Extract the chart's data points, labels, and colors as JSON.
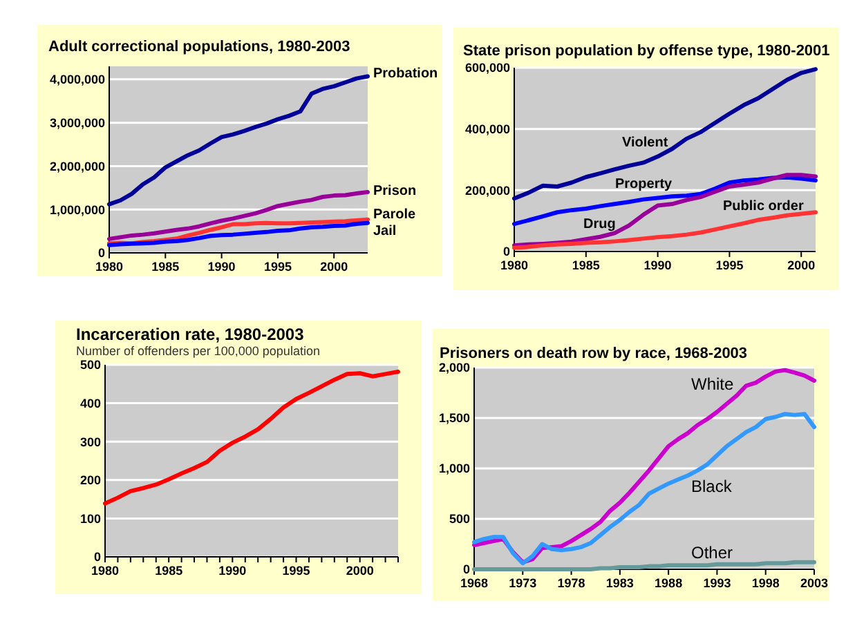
{
  "chart_data": [
    {
      "type": "line",
      "title": "Adult correctional populations, 1980-2003",
      "x": [
        1980,
        1981,
        1982,
        1983,
        1984,
        1985,
        1986,
        1987,
        1988,
        1989,
        1990,
        1991,
        1992,
        1993,
        1994,
        1995,
        1996,
        1997,
        1998,
        1999,
        2000,
        2001,
        2002,
        2003
      ],
      "xlim": [
        1980,
        2003
      ],
      "xticks": [
        1980,
        1985,
        1990,
        1995,
        2000
      ],
      "ylim": [
        0,
        4300000
      ],
      "yticks": [
        {
          "value": 0,
          "label": "0"
        },
        {
          "value": 1000000,
          "label": "1,000,000"
        },
        {
          "value": 2000000,
          "label": "2,000,000"
        },
        {
          "value": 3000000,
          "label": "3,000,000"
        },
        {
          "value": 4000000,
          "label": "4,000,000"
        }
      ],
      "grid": "y",
      "series": [
        {
          "name": "Probation",
          "color": "#000099",
          "values": [
            1120000,
            1210000,
            1360000,
            1580000,
            1740000,
            1970000,
            2110000,
            2250000,
            2360000,
            2520000,
            2670000,
            2730000,
            2810000,
            2900000,
            2980000,
            3080000,
            3160000,
            3260000,
            3670000,
            3780000,
            3840000,
            3930000,
            4020000,
            4070000
          ]
        },
        {
          "name": "Prison",
          "color": "#990099",
          "values": [
            320000,
            360000,
            400000,
            420000,
            450000,
            490000,
            530000,
            560000,
            610000,
            680000,
            740000,
            790000,
            850000,
            910000,
            990000,
            1080000,
            1130000,
            1180000,
            1220000,
            1290000,
            1320000,
            1330000,
            1370000,
            1400000
          ]
        },
        {
          "name": "Parole",
          "color": "#ff3333",
          "values": [
            220000,
            230000,
            220000,
            250000,
            270000,
            300000,
            330000,
            400000,
            460000,
            530000,
            590000,
            660000,
            660000,
            680000,
            690000,
            680000,
            680000,
            690000,
            700000,
            710000,
            720000,
            730000,
            750000,
            770000
          ]
        },
        {
          "name": "Jail",
          "color": "#0000ff",
          "values": [
            180000,
            200000,
            210000,
            220000,
            230000,
            260000,
            270000,
            300000,
            340000,
            390000,
            410000,
            420000,
            440000,
            460000,
            480000,
            510000,
            520000,
            560000,
            590000,
            600000,
            620000,
            630000,
            670000,
            690000
          ]
        }
      ]
    },
    {
      "type": "line",
      "title": "State prison population by offense type, 1980-2001",
      "x": [
        1980,
        1981,
        1982,
        1983,
        1984,
        1985,
        1986,
        1987,
        1988,
        1989,
        1990,
        1991,
        1992,
        1993,
        1994,
        1995,
        1996,
        1997,
        1998,
        1999,
        2000,
        2001
      ],
      "xlim": [
        1980,
        2001
      ],
      "xticks": [
        1980,
        1985,
        1990,
        1995,
        2000
      ],
      "ylim": [
        0,
        600000
      ],
      "yticks": [
        {
          "value": 0,
          "label": "0"
        },
        {
          "value": 200000,
          "label": "200,000"
        },
        {
          "value": 400000,
          "label": "400,000"
        },
        {
          "value": 600000,
          "label": "600,000"
        }
      ],
      "grid": "y",
      "series": [
        {
          "name": "Violent",
          "color": "#000099",
          "values": [
            173000,
            192000,
            215000,
            212000,
            225000,
            243000,
            255000,
            268000,
            280000,
            290000,
            310000,
            335000,
            368000,
            390000,
            420000,
            450000,
            478000,
            500000,
            530000,
            560000,
            583000,
            595000
          ]
        },
        {
          "name": "Property",
          "color": "#0000ff",
          "values": [
            90000,
            102000,
            115000,
            128000,
            135000,
            140000,
            148000,
            155000,
            162000,
            170000,
            175000,
            180000,
            182000,
            188000,
            205000,
            225000,
            232000,
            235000,
            240000,
            242000,
            238000,
            232000
          ]
        },
        {
          "name": "Drug",
          "color": "#990099",
          "values": [
            20000,
            23000,
            25000,
            28000,
            32000,
            40000,
            48000,
            60000,
            85000,
            120000,
            150000,
            155000,
            168000,
            178000,
            195000,
            212000,
            218000,
            225000,
            238000,
            250000,
            250000,
            245000
          ]
        },
        {
          "name": "Public order",
          "color": "#ff3333",
          "values": [
            12000,
            15000,
            20000,
            23000,
            25000,
            28000,
            30000,
            33000,
            37000,
            42000,
            47000,
            50000,
            55000,
            62000,
            72000,
            82000,
            92000,
            103000,
            110000,
            118000,
            123000,
            128000
          ]
        }
      ]
    },
    {
      "type": "line",
      "title": "Incarceration rate, 1980-2003",
      "subtitle": "Number of offenders per 100,000 population",
      "x": [
        1980,
        1981,
        1982,
        1983,
        1984,
        1985,
        1986,
        1987,
        1988,
        1989,
        1990,
        1991,
        1992,
        1993,
        1994,
        1995,
        1996,
        1997,
        1998,
        1999,
        2000,
        2001,
        2002,
        2003
      ],
      "xlim": [
        1980,
        2003
      ],
      "xticks": [
        1980,
        {
          "value": 1981,
          "label": null
        },
        {
          "value": 1982,
          "label": null
        },
        {
          "value": 1983,
          "label": null
        },
        {
          "value": 1984,
          "label": null
        },
        1985,
        {
          "value": 1986,
          "label": null
        },
        {
          "value": 1987,
          "label": null
        },
        {
          "value": 1988,
          "label": null
        },
        {
          "value": 1989,
          "label": null
        },
        1990,
        {
          "value": 1991,
          "label": null
        },
        {
          "value": 1992,
          "label": null
        },
        {
          "value": 1993,
          "label": null
        },
        {
          "value": 1994,
          "label": null
        },
        1995,
        {
          "value": 1996,
          "label": null
        },
        {
          "value": 1997,
          "label": null
        },
        {
          "value": 1998,
          "label": null
        },
        {
          "value": 1999,
          "label": null
        },
        2000,
        {
          "value": 2001,
          "label": null
        },
        {
          "value": 2002,
          "label": null
        },
        {
          "value": 2003,
          "label": null
        }
      ],
      "ylim": [
        0,
        500
      ],
      "yticks": [
        0,
        100,
        200,
        300,
        400,
        500
      ],
      "grid": "y",
      "series": [
        {
          "color": "#ff0000",
          "values": [
            139,
            154,
            171,
            179,
            188,
            202,
            217,
            231,
            247,
            276,
            297,
            313,
            332,
            359,
            389,
            411,
            427,
            444,
            461,
            476,
            478,
            470,
            476,
            482
          ]
        }
      ]
    },
    {
      "type": "line",
      "title": "Prisoners on death row by race, 1968-2003",
      "x": [
        1968,
        1969,
        1970,
        1971,
        1972,
        1973,
        1974,
        1975,
        1976,
        1977,
        1978,
        1979,
        1980,
        1981,
        1982,
        1983,
        1984,
        1985,
        1986,
        1987,
        1988,
        1989,
        1990,
        1991,
        1992,
        1993,
        1994,
        1995,
        1996,
        1997,
        1998,
        1999,
        2000,
        2001,
        2002,
        2003
      ],
      "xlim": [
        1968,
        2003
      ],
      "xticks": [
        1968,
        1973,
        1978,
        1983,
        1988,
        1993,
        1998,
        2003
      ],
      "ylim": [
        0,
        2000
      ],
      "yticks": [
        0,
        500,
        {
          "value": 1000,
          "label": "1,000"
        },
        {
          "value": 1500,
          "label": "1,500"
        },
        {
          "value": 2000,
          "label": "2,000"
        }
      ],
      "grid": "y",
      "series": [
        {
          "name": "White",
          "color": "#cc00cc",
          "values": [
            240,
            260,
            280,
            300,
            170,
            70,
            100,
            210,
            220,
            230,
            280,
            340,
            400,
            470,
            580,
            660,
            760,
            870,
            980,
            1100,
            1220,
            1290,
            1350,
            1430,
            1490,
            1560,
            1640,
            1720,
            1820,
            1850,
            1910,
            1960,
            1975,
            1950,
            1920,
            1870
          ]
        },
        {
          "name": "Black",
          "color": "#3399ff",
          "values": [
            270,
            300,
            320,
            320,
            160,
            60,
            130,
            250,
            200,
            190,
            200,
            220,
            260,
            340,
            420,
            490,
            570,
            640,
            750,
            800,
            850,
            890,
            930,
            980,
            1040,
            1130,
            1220,
            1290,
            1360,
            1410,
            1490,
            1510,
            1540,
            1530,
            1540,
            1410
          ]
        },
        {
          "name": "Other",
          "color": "#669999",
          "values": [
            0,
            0,
            0,
            0,
            0,
            0,
            0,
            0,
            0,
            0,
            0,
            0,
            0,
            10,
            10,
            20,
            20,
            20,
            30,
            30,
            40,
            40,
            40,
            40,
            40,
            50,
            50,
            50,
            50,
            50,
            60,
            60,
            60,
            70,
            70,
            70
          ]
        }
      ]
    }
  ]
}
